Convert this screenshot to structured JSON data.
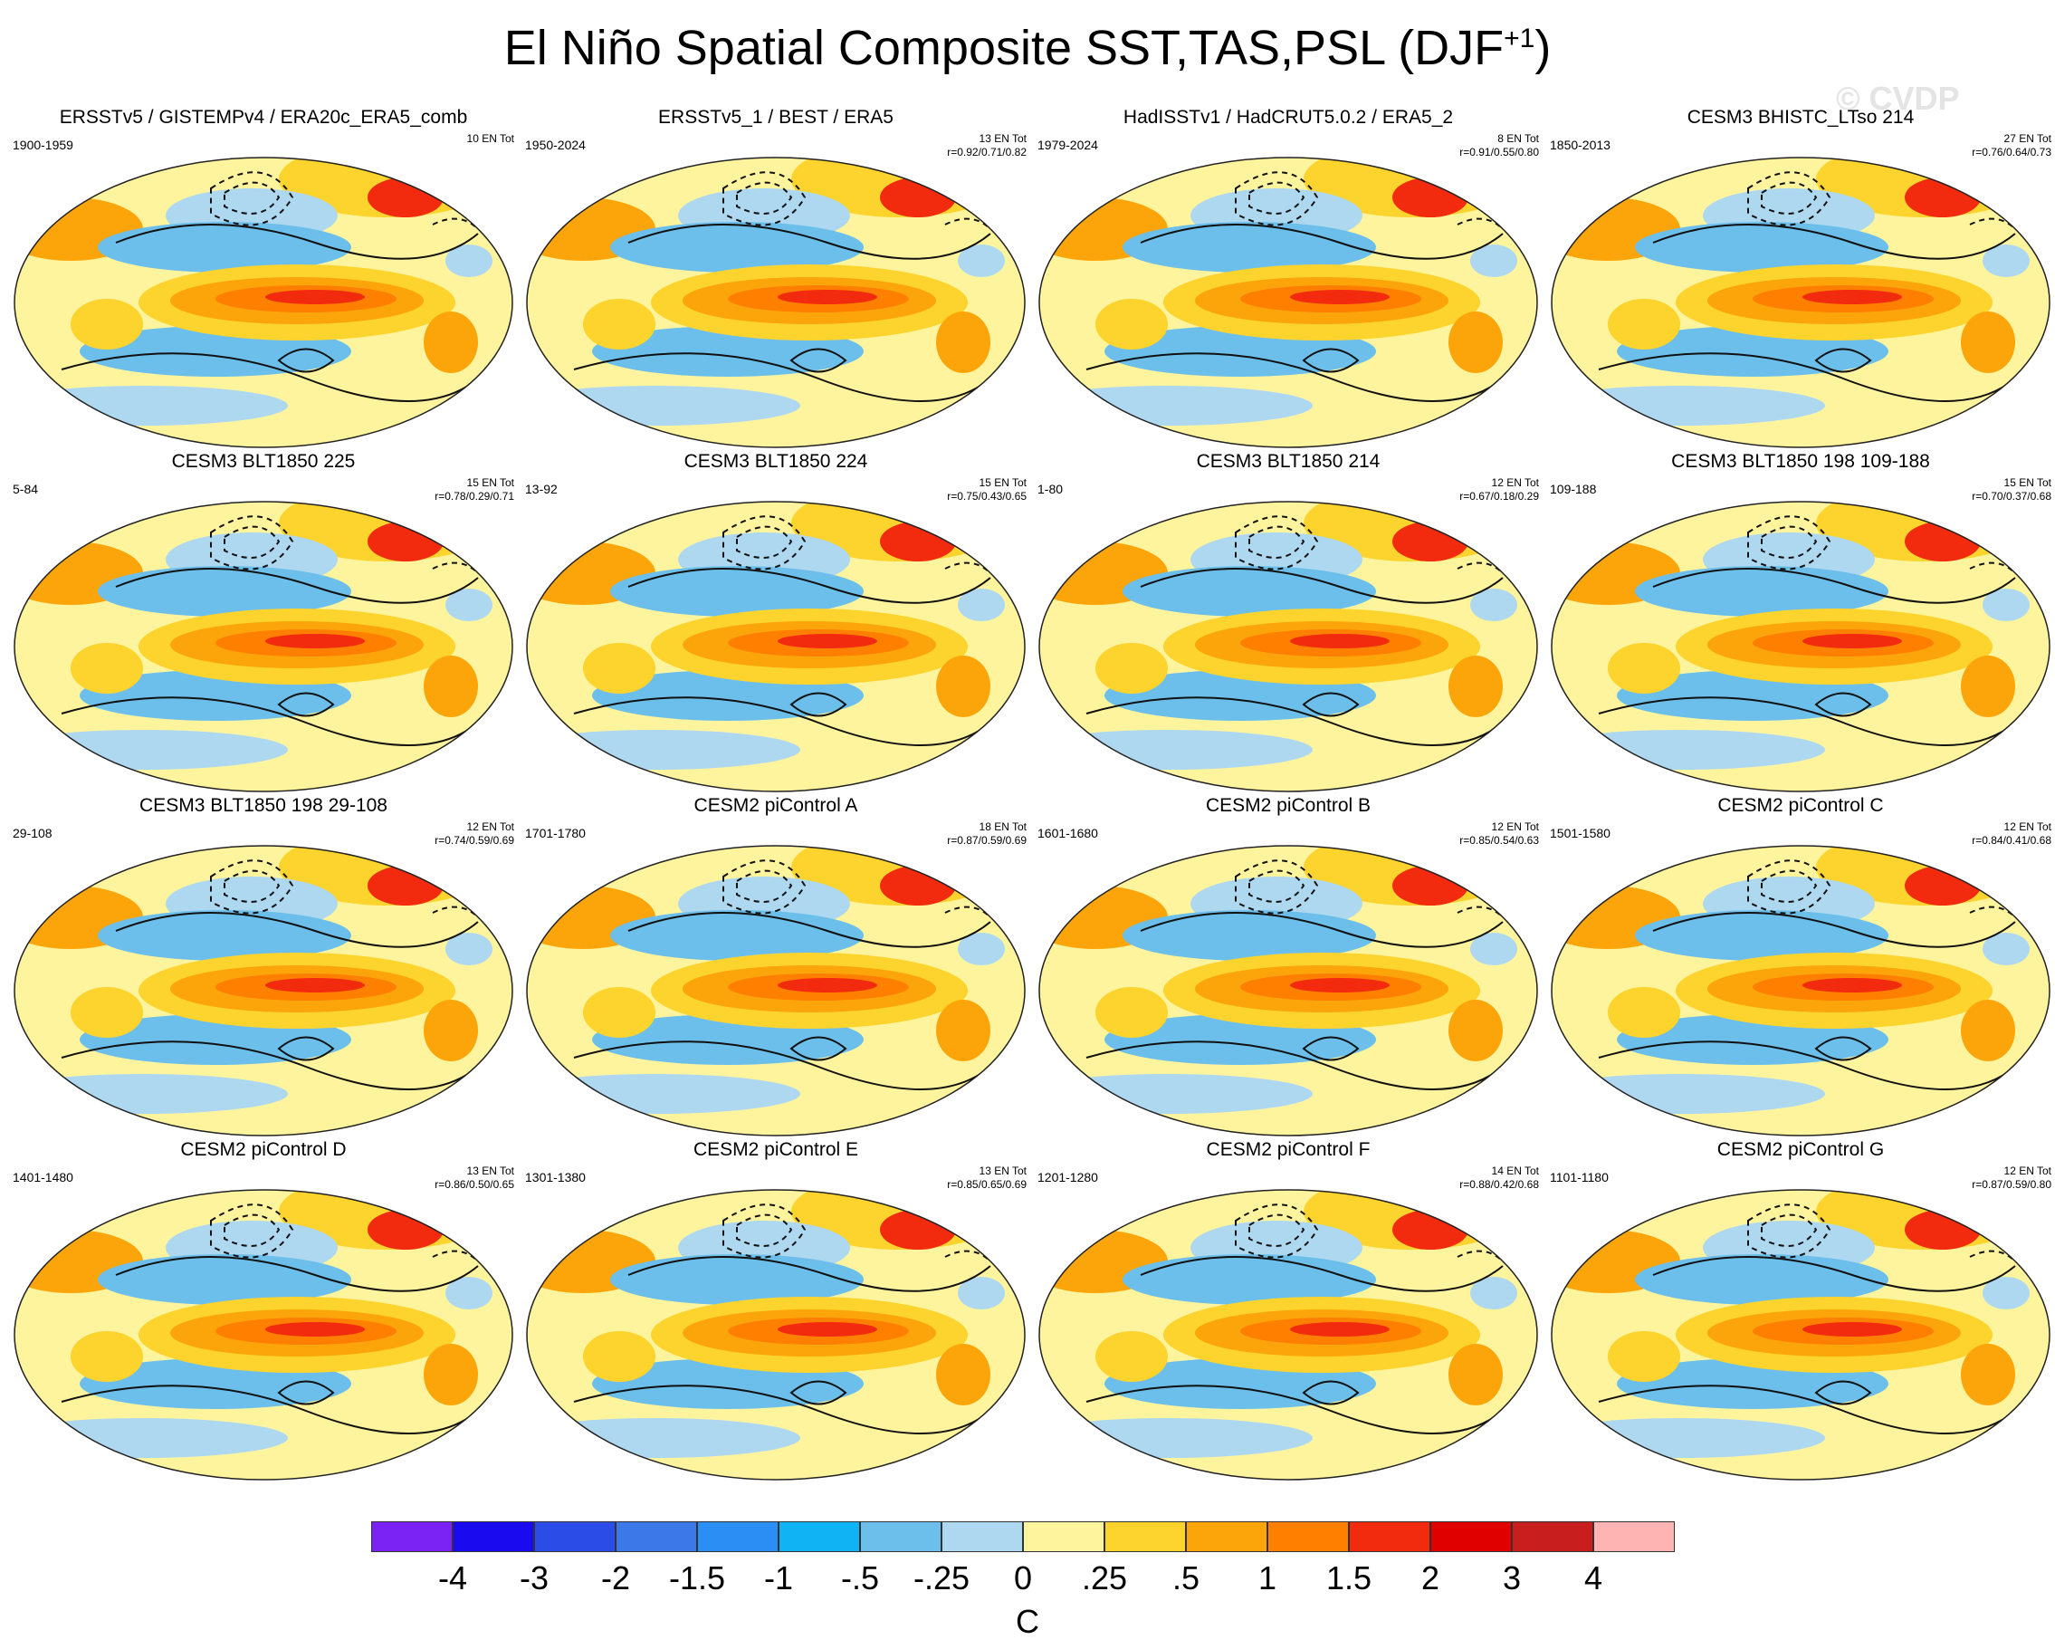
{
  "title": {
    "main": "El Niño Spatial Composite SST,TAS,PSL (DJF",
    "sup": "+1",
    "close": ")"
  },
  "watermark": "© CVDP",
  "colors": {
    "land_base": "#fff49e",
    "warm_light": "#fdd32d",
    "warm_mid": "#fca50a",
    "warm_strong": "#ff7f00",
    "warm_deep": "#f22b0f",
    "cool_light": "#aed8f0",
    "cool_mid": "#6cbfeb",
    "cool_strong": "#48a0ea"
  },
  "chart_data": {
    "type": "heatmap",
    "title": "El Niño Spatial Composite SST,TAS,PSL (DJF+1)",
    "colorbar": {
      "units": "C",
      "levels": [
        "-4",
        "-3",
        "-2",
        "-1.5",
        "-1",
        "-.5",
        "-.25",
        "0",
        ".25",
        ".5",
        "1",
        "1.5",
        "2",
        "3",
        "4"
      ],
      "colors": [
        "#7b22f5",
        "#1a0af0",
        "#2c4ce8",
        "#3c78e8",
        "#2a8ef5",
        "#10b4f5",
        "#6cbfeb",
        "#aed8f0",
        "#fff49e",
        "#fdd32d",
        "#fca50a",
        "#ff7f00",
        "#f22b0f",
        "#e00000",
        "#c81e1e",
        "#ffb4b4"
      ]
    },
    "panels": [
      {
        "title": "ERSSTv5 / GISTEMPv4 / ERA20c_ERA5_comb",
        "period": "1900-1959",
        "count": "10 EN Tot",
        "corr": ""
      },
      {
        "title": "ERSSTv5_1 / BEST / ERA5",
        "period": "1950-2024",
        "count": "13 EN Tot",
        "corr": "r=0.92/0.71/0.82"
      },
      {
        "title": "HadISSTv1 / HadCRUT5.0.2 / ERA5_2",
        "period": "1979-2024",
        "count": "8 EN Tot",
        "corr": "r=0.91/0.55/0.80"
      },
      {
        "title": "CESM3 BHISTC_LTso 214",
        "period": "1850-2013",
        "count": "27 EN Tot",
        "corr": "r=0.76/0.64/0.73"
      },
      {
        "title": "CESM3 BLT1850 225",
        "period": "5-84",
        "count": "15 EN Tot",
        "corr": "r=0.78/0.29/0.71"
      },
      {
        "title": "CESM3 BLT1850 224",
        "period": "13-92",
        "count": "15 EN Tot",
        "corr": "r=0.75/0.43/0.65"
      },
      {
        "title": "CESM3 BLT1850 214",
        "period": "1-80",
        "count": "12 EN Tot",
        "corr": "r=0.67/0.18/0.29"
      },
      {
        "title": "CESM3 BLT1850 198 109-188",
        "period": "109-188",
        "count": "15 EN Tot",
        "corr": "r=0.70/0.37/0.68"
      },
      {
        "title": "CESM3 BLT1850 198 29-108",
        "period": "29-108",
        "count": "12 EN Tot",
        "corr": "r=0.74/0.59/0.69"
      },
      {
        "title": "CESM2 piControl A",
        "period": "1701-1780",
        "count": "18 EN Tot",
        "corr": "r=0.87/0.59/0.69"
      },
      {
        "title": "CESM2 piControl B",
        "period": "1601-1680",
        "count": "12 EN Tot",
        "corr": "r=0.85/0.54/0.63"
      },
      {
        "title": "CESM2 piControl C",
        "period": "1501-1580",
        "count": "12 EN Tot",
        "corr": "r=0.84/0.41/0.68"
      },
      {
        "title": "CESM2 piControl D",
        "period": "1401-1480",
        "count": "13 EN Tot",
        "corr": "r=0.86/0.50/0.65"
      },
      {
        "title": "CESM2 piControl E",
        "period": "1301-1380",
        "count": "13 EN Tot",
        "corr": "r=0.85/0.65/0.69"
      },
      {
        "title": "CESM2 piControl F",
        "period": "1201-1280",
        "count": "14 EN Tot",
        "corr": "r=0.88/0.42/0.68"
      },
      {
        "title": "CESM2 piControl G",
        "period": "1101-1180",
        "count": "12 EN Tot",
        "corr": "r=0.87/0.59/0.80"
      }
    ]
  }
}
